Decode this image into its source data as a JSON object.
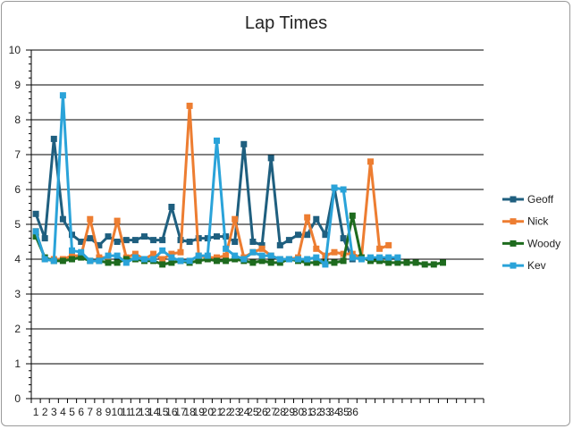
{
  "chart_data": {
    "type": "line",
    "title": "Lap Times",
    "xlabel": "",
    "ylabel": "",
    "ylim": [
      0,
      10
    ],
    "yticks": [
      0,
      1,
      2,
      3,
      4,
      5,
      6,
      7,
      8,
      9,
      10
    ],
    "xlim": [
      1,
      50
    ],
    "x_tick_labels": [
      "1",
      "2",
      "3",
      "4",
      "5",
      "6",
      "7",
      "8",
      "9",
      "10",
      "11",
      "12",
      "13",
      "14",
      "15",
      "16",
      "17",
      "18",
      "19",
      "20",
      "21",
      "22",
      "23",
      "24",
      "25",
      "26",
      "27",
      "28",
      "29",
      "30",
      "31",
      "32",
      "33",
      "34",
      "35",
      "36"
    ],
    "grid": "horizontal",
    "legend_position": "right",
    "series": [
      {
        "name": "Geoff",
        "color": "#1f5f7f",
        "values": [
          5.3,
          4.6,
          7.45,
          5.15,
          4.7,
          4.5,
          4.6,
          4.4,
          4.65,
          4.5,
          4.55,
          4.55,
          4.65,
          4.55,
          4.55,
          5.5,
          4.55,
          4.5,
          4.6,
          4.6,
          4.65,
          4.65,
          4.5,
          7.3,
          4.5,
          4.4,
          6.9,
          4.4,
          4.55,
          4.7,
          4.7,
          5.15,
          4.7,
          6.05,
          4.6,
          4.0
        ]
      },
      {
        "name": "Nick",
        "color": "#ed7d31",
        "values": [
          4.8,
          4.0,
          4.0,
          4.0,
          4.1,
          4.1,
          5.15,
          4.05,
          4.05,
          5.1,
          4.05,
          4.15,
          4.0,
          4.15,
          4.0,
          4.15,
          4.2,
          8.4,
          4.1,
          4.05,
          4.05,
          4.1,
          5.15,
          4.05,
          4.2,
          4.3,
          4.1,
          4.0,
          4.0,
          4.05,
          5.2,
          4.3,
          4.1,
          4.2,
          4.15,
          4.15,
          4.05,
          6.8,
          4.3,
          4.4
        ]
      },
      {
        "name": "Woody",
        "color": "#1e6b1e",
        "values": [
          4.65,
          4.05,
          3.95,
          3.95,
          4.0,
          4.05,
          3.95,
          3.95,
          3.9,
          3.9,
          4.0,
          4.0,
          3.95,
          3.95,
          3.85,
          3.9,
          3.95,
          3.9,
          3.95,
          4.0,
          3.95,
          3.95,
          4.0,
          3.95,
          3.9,
          3.95,
          3.9,
          3.9,
          4.0,
          3.95,
          3.9,
          3.9,
          3.9,
          3.9,
          3.95,
          5.25,
          4.05,
          3.95,
          3.95,
          3.9,
          3.9,
          3.9,
          3.9,
          3.85,
          3.85,
          3.9
        ]
      },
      {
        "name": "Kev",
        "color": "#2aa3d9",
        "values": [
          4.8,
          4.0,
          3.95,
          8.7,
          4.25,
          4.2,
          3.95,
          3.95,
          4.1,
          4.1,
          3.9,
          4.05,
          4.0,
          4.0,
          4.25,
          4.05,
          3.95,
          3.95,
          4.1,
          4.1,
          7.4,
          4.3,
          4.1,
          4.0,
          4.2,
          4.1,
          4.1,
          4.0,
          4.0,
          4.0,
          4.0,
          4.05,
          3.85,
          6.05,
          6.0,
          4.05,
          4.0,
          4.05,
          4.05,
          4.05,
          4.05
        ]
      }
    ]
  }
}
